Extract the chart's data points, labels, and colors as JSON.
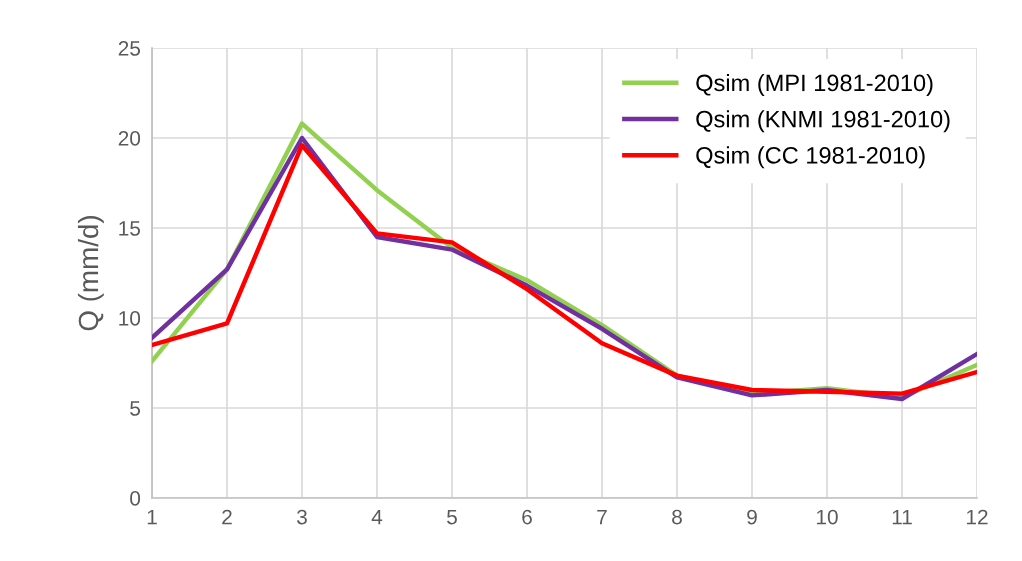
{
  "chart_data": {
    "type": "line",
    "ylabel": "Q (mm/d)",
    "x": [
      1,
      2,
      3,
      4,
      5,
      6,
      7,
      8,
      9,
      10,
      11,
      12
    ],
    "series": [
      {
        "name": "Qsim (MPI 1981-2010)",
        "color": "#92d050",
        "values": [
          7.6,
          12.7,
          20.8,
          17.1,
          13.9,
          12.1,
          9.6,
          6.8,
          5.8,
          6.1,
          5.6,
          7.4
        ]
      },
      {
        "name": "Qsim (KNMI 1981-2010)",
        "color": "#7030a0",
        "values": [
          8.9,
          12.7,
          20.0,
          14.5,
          13.8,
          11.8,
          9.4,
          6.7,
          5.7,
          6.0,
          5.5,
          8.0
        ]
      },
      {
        "name": "Qsim (CC 1981-2010)",
        "color": "#ff0000",
        "values": [
          8.5,
          9.7,
          19.6,
          14.7,
          14.2,
          11.6,
          8.6,
          6.8,
          6.0,
          5.9,
          5.8,
          7.0
        ]
      }
    ],
    "xlim": [
      1,
      12
    ],
    "xticks": [
      1,
      2,
      3,
      4,
      5,
      6,
      7,
      8,
      9,
      10,
      11,
      12
    ],
    "ylim": [
      0,
      25
    ],
    "yticks": [
      0,
      5,
      10,
      15,
      20,
      25
    ],
    "grid": true,
    "legend": "top right",
    "marker": "none",
    "line_style": "solid"
  }
}
